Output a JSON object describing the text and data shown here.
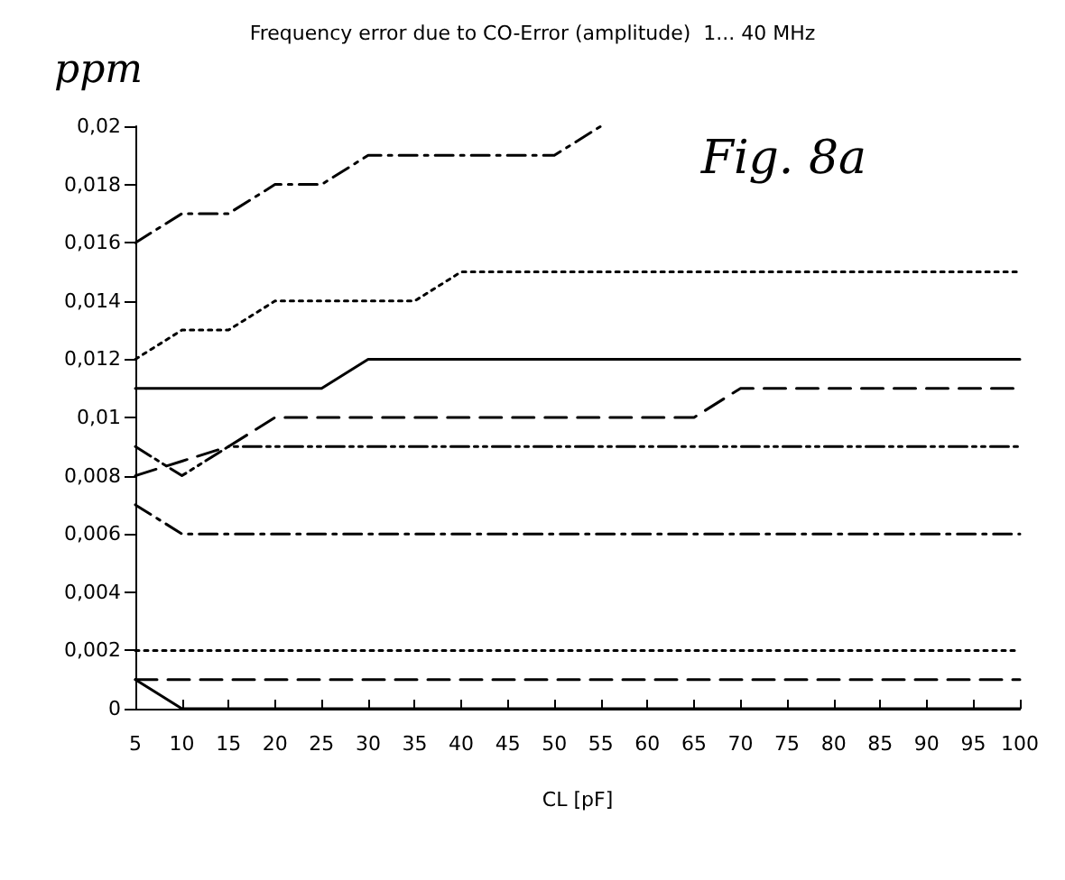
{
  "chart_data": {
    "type": "line",
    "title": "Frequency error due to CO-Error (amplitude)  1... 40 MHz",
    "xlabel": "CL [pF]",
    "ylabel": "ppm",
    "annotations": [
      "Fig. 8a"
    ],
    "x": [
      5,
      10,
      15,
      20,
      25,
      30,
      35,
      40,
      45,
      50,
      55,
      60,
      65,
      70,
      75,
      80,
      85,
      90,
      95,
      100
    ],
    "xlim": [
      5,
      100
    ],
    "xticks": [
      5,
      10,
      15,
      20,
      25,
      30,
      35,
      40,
      45,
      50,
      55,
      60,
      65,
      70,
      75,
      80,
      85,
      90,
      95,
      100
    ],
    "ylim": [
      0,
      0.02
    ],
    "yticks": [
      {
        "value": 0,
        "label": "0"
      },
      {
        "value": 0.002,
        "label": "0,002"
      },
      {
        "value": 0.004,
        "label": "0,004"
      },
      {
        "value": 0.006,
        "label": "0,006"
      },
      {
        "value": 0.008,
        "label": "0,008"
      },
      {
        "value": 0.01,
        "label": "0,01"
      },
      {
        "value": 0.012,
        "label": "0,012"
      },
      {
        "value": 0.014,
        "label": "0,014"
      },
      {
        "value": 0.016,
        "label": "0,016"
      },
      {
        "value": 0.018,
        "label": "0,018"
      },
      {
        "value": 0.02,
        "label": "0,02"
      }
    ],
    "grid": false,
    "marker": "none",
    "series": [
      {
        "color": "#000000",
        "line_style": "dashdot",
        "values": [
          0.016,
          0.017,
          0.017,
          0.018,
          0.018,
          0.019,
          0.019,
          0.019,
          0.019,
          0.019,
          0.02,
          null,
          null,
          null,
          null,
          null,
          null,
          null,
          null,
          null
        ]
      },
      {
        "color": "#000000",
        "line_style": "dotted",
        "values": [
          0.012,
          0.013,
          0.013,
          0.014,
          0.014,
          0.014,
          0.014,
          0.015,
          0.015,
          0.015,
          0.015,
          0.015,
          0.015,
          0.015,
          0.015,
          0.015,
          0.015,
          0.015,
          0.015,
          0.015
        ]
      },
      {
        "color": "#000000",
        "line_style": "solid",
        "values": [
          0.011,
          0.011,
          0.011,
          0.011,
          0.011,
          0.012,
          0.012,
          0.012,
          0.012,
          0.012,
          0.012,
          0.012,
          0.012,
          0.012,
          0.012,
          0.012,
          0.012,
          0.012,
          0.012,
          0.012
        ]
      },
      {
        "color": "#000000",
        "line_style": "dashed",
        "values": [
          0.008,
          0.0085,
          0.009,
          0.01,
          0.01,
          0.01,
          0.01,
          0.01,
          0.01,
          0.01,
          0.01,
          0.01,
          0.01,
          0.011,
          0.011,
          0.011,
          0.011,
          0.011,
          0.011,
          0.011
        ]
      },
      {
        "color": "#000000",
        "line_style": "dashdotdot",
        "values": [
          0.009,
          0.008,
          0.009,
          0.009,
          0.009,
          0.009,
          0.009,
          0.009,
          0.009,
          0.009,
          0.009,
          0.009,
          0.009,
          0.009,
          0.009,
          0.009,
          0.009,
          0.009,
          0.009,
          0.009
        ]
      },
      {
        "color": "#000000",
        "line_style": "dashdot",
        "values": [
          0.007,
          0.006,
          0.006,
          0.006,
          0.006,
          0.006,
          0.006,
          0.006,
          0.006,
          0.006,
          0.006,
          0.006,
          0.006,
          0.006,
          0.006,
          0.006,
          0.006,
          0.006,
          0.006,
          0.006
        ]
      },
      {
        "color": "#000000",
        "line_style": "dotted",
        "values": [
          0.002,
          0.002,
          0.002,
          0.002,
          0.002,
          0.002,
          0.002,
          0.002,
          0.002,
          0.002,
          0.002,
          0.002,
          0.002,
          0.002,
          0.002,
          0.002,
          0.002,
          0.002,
          0.002,
          0.002
        ]
      },
      {
        "color": "#000000",
        "line_style": "dashed",
        "values": [
          0.001,
          0.001,
          0.001,
          0.001,
          0.001,
          0.001,
          0.001,
          0.001,
          0.001,
          0.001,
          0.001,
          0.001,
          0.001,
          0.001,
          0.001,
          0.001,
          0.001,
          0.001,
          0.001,
          0.001
        ]
      },
      {
        "color": "#000000",
        "line_style": "solid",
        "values": [
          0.001,
          0,
          0,
          0,
          0,
          0,
          0,
          0,
          0,
          0,
          0,
          0,
          0,
          0,
          0,
          0,
          0,
          0,
          0,
          0
        ]
      }
    ]
  }
}
